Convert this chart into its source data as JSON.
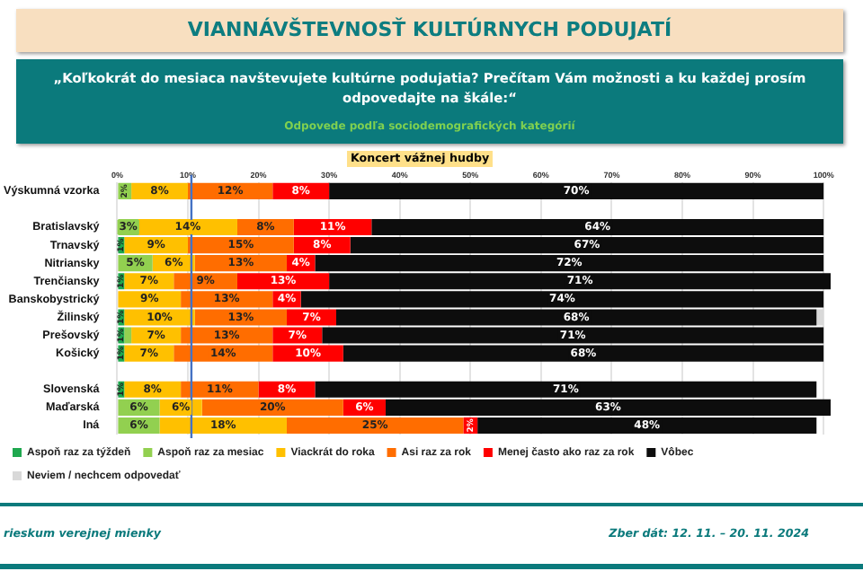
{
  "chart_data": {
    "type": "bar",
    "orientation": "horizontal",
    "stacked": true,
    "title": "VIANNÁVŠTEVNOSŤ KULTÚRNYCH PODUJATÍ",
    "subtitle": "„Koľkokrát do mesiaca navštevujete kultúrne podujatia? Prečítam Vám možnosti a ku každej prosím odpovedajte na škále:“",
    "annotations": [
      "Odpovede podľa sociodemografických kategórií",
      "Koncert vážnej hudby",
      "rieskum verejnej mienky",
      "Zber dát: 12. 11. – 20. 11. 2024"
    ],
    "categories": [
      "Výskumná vzorka",
      null,
      "Bratislavský",
      "Trnavský",
      "Nitriansky",
      "Trenčiansky",
      "Banskobystrický",
      "Žilinský",
      "Prešovský",
      "Košický",
      null,
      "Slovenská",
      "Maďarská",
      "Iná"
    ],
    "series": [
      {
        "name": "Aspoň raz za týždeň",
        "color": "#1fa84f",
        "values": [
          null,
          null,
          null,
          1,
          null,
          1,
          null,
          1,
          1,
          1,
          null,
          1,
          null,
          null
        ],
        "value_labels": [
          null,
          null,
          null,
          "1%",
          null,
          "1%",
          null,
          "1%",
          "1%",
          "1%",
          null,
          "1%",
          null,
          null
        ]
      },
      {
        "name": "Aspoň raz za mesiac",
        "color": "#92d050",
        "values": [
          2,
          null,
          3,
          null,
          5,
          null,
          null,
          null,
          1,
          null,
          null,
          null,
          6,
          6
        ],
        "value_labels": [
          "2%",
          null,
          "3%",
          null,
          "5%",
          null,
          null,
          null,
          null,
          null,
          null,
          null,
          "6%",
          "6%"
        ]
      },
      {
        "name": "Viackrát do roka",
        "color": "#ffc000",
        "values": [
          8,
          null,
          14,
          9,
          6,
          7,
          9,
          10,
          7,
          7,
          null,
          8,
          6,
          18
        ],
        "value_labels": [
          "8%",
          null,
          "14%",
          "9%",
          "6%",
          "7%",
          "9%",
          "10%",
          "7%",
          "7%",
          null,
          "8%",
          "6%",
          "18%"
        ]
      },
      {
        "name": "Asi raz za rok",
        "color": "#ff6d00",
        "values": [
          12,
          null,
          8,
          15,
          13,
          9,
          13,
          13,
          13,
          14,
          null,
          11,
          20,
          25
        ],
        "value_labels": [
          "12%",
          null,
          "8%",
          "15%",
          "13%",
          "9%",
          "13%",
          "13%",
          "13%",
          "14%",
          null,
          "11%",
          "20%",
          "25%"
        ]
      },
      {
        "name": "Menej často ako raz za rok",
        "color": "#ff0000",
        "values": [
          8,
          null,
          11,
          8,
          4,
          13,
          4,
          7,
          7,
          10,
          null,
          8,
          6,
          2
        ],
        "value_labels": [
          "8%",
          null,
          "11%",
          "8%",
          "4%",
          "13%",
          "4%",
          "7%",
          "7%",
          "10%",
          null,
          "8%",
          "6%",
          "2%"
        ]
      },
      {
        "name": "Vôbec",
        "color": "#0d0d0d",
        "values": [
          70,
          null,
          64,
          67,
          72,
          71,
          74,
          68,
          71,
          68,
          null,
          71,
          63,
          48
        ],
        "value_labels": [
          "70%",
          null,
          "64%",
          "67%",
          "72%",
          "71%",
          "74%",
          "68%",
          "71%",
          "68%",
          null,
          "71%",
          "63%",
          "48%"
        ]
      },
      {
        "name": "Neviem / nechcem odpovedať",
        "color": "#d9d9d9",
        "values": [
          null,
          null,
          null,
          null,
          null,
          null,
          null,
          1,
          null,
          null,
          null,
          null,
          null,
          null
        ],
        "value_labels": [
          null,
          null,
          null,
          null,
          null,
          null,
          null,
          null,
          null,
          null,
          null,
          null,
          null,
          null
        ]
      }
    ],
    "xlim": [
      0,
      101
    ],
    "xticks": [
      {
        "value": 0,
        "label": "0%"
      },
      {
        "value": 10,
        "label": "10%"
      },
      {
        "value": 20,
        "label": "20%"
      },
      {
        "value": 30,
        "label": "30%"
      },
      {
        "value": 40,
        "label": "40%"
      },
      {
        "value": 50,
        "label": "50%"
      },
      {
        "value": 60,
        "label": "60%"
      },
      {
        "value": 70,
        "label": "70%"
      },
      {
        "value": 80,
        "label": "80%"
      },
      {
        "value": 90,
        "label": "90%"
      },
      {
        "value": 100,
        "label": "100%"
      }
    ],
    "ref_lines": [
      {
        "axis": "x",
        "value": 10.5,
        "color": "#4472c4"
      }
    ],
    "grid": "x",
    "legend": "bottom"
  }
}
